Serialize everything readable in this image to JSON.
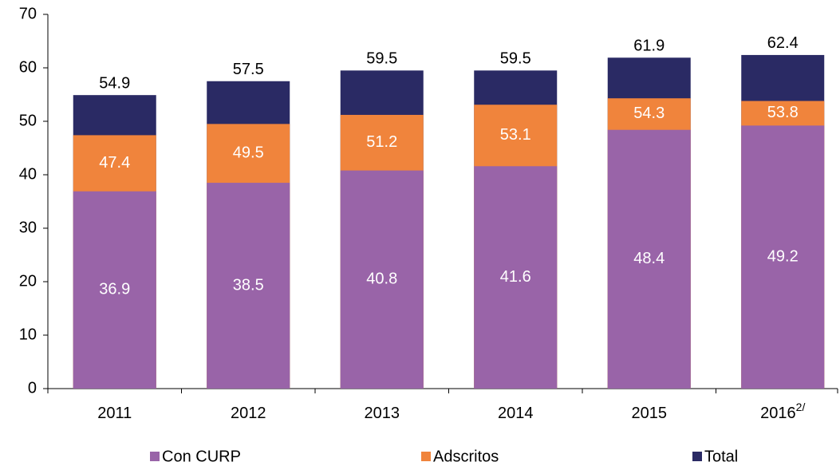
{
  "chart_data": {
    "type": "bar",
    "overlap": true,
    "categories": [
      "2011",
      "2012",
      "2013",
      "2014",
      "2015",
      "2016"
    ],
    "category_superscripts": [
      null,
      null,
      null,
      null,
      null,
      "2/"
    ],
    "series": [
      {
        "name": "Con CURP",
        "color": "#9964a8",
        "values": [
          36.9,
          38.5,
          40.8,
          41.6,
          48.4,
          49.2
        ]
      },
      {
        "name": "Adscritos",
        "color": "#f0843c",
        "values": [
          47.4,
          49.5,
          51.2,
          53.1,
          54.3,
          53.8
        ]
      },
      {
        "name": "Total",
        "color": "#2a2a64",
        "values": [
          54.9,
          57.5,
          59.5,
          59.5,
          61.9,
          62.4
        ]
      }
    ],
    "ylim": [
      0,
      70
    ],
    "yticks": [
      0,
      10,
      20,
      30,
      40,
      50,
      60,
      70
    ],
    "grid": false,
    "legend": "bottom"
  }
}
